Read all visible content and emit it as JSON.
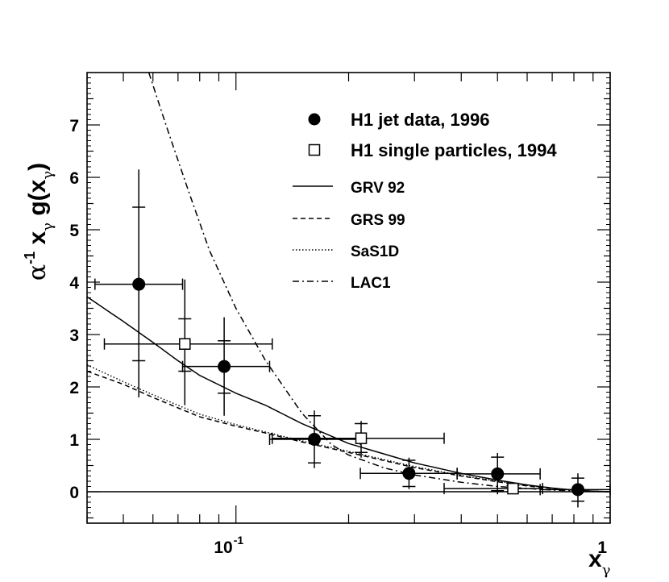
{
  "chart_data": {
    "type": "scatter",
    "title": "",
    "xscale": "log",
    "xlim": [
      0.04,
      1.0
    ],
    "ylim": [
      -0.6,
      8.0
    ],
    "xlabel": {
      "base": "x",
      "sub": "γ"
    },
    "ylabel": {
      "pre": "α",
      "pre_sup": "-1",
      "mid": "x",
      "mid_sub": "γ",
      "post": "g(x",
      "post_sub": "γ",
      "close": ")"
    },
    "y_ticks": [
      0,
      1,
      2,
      3,
      4,
      5,
      6,
      7
    ],
    "y_tick_labels": [
      "0",
      "1",
      "2",
      "3",
      "4",
      "5",
      "6",
      "7"
    ],
    "x_tick_labels": [
      {
        "value": 0.1,
        "base": "10",
        "exp": "-1"
      },
      {
        "value": 1.0,
        "base": "1",
        "exp": ""
      }
    ],
    "legend_position": "top-right",
    "legend": [
      {
        "label": "H1 jet data, 1996",
        "kind": "filled-circle"
      },
      {
        "label": "H1 single particles, 1994",
        "kind": "open-square"
      },
      {
        "label": "GRV 92",
        "kind": "solid"
      },
      {
        "label": "GRS 99",
        "kind": "dashed"
      },
      {
        "label": "SaS1D",
        "kind": "dotted"
      },
      {
        "label": "LAC1",
        "kind": "dashdot"
      }
    ],
    "series": [
      {
        "name": "H1 jet data, 1996",
        "marker": "filled-circle",
        "points": [
          {
            "x": 0.055,
            "y": 3.96,
            "xlo": 0.042,
            "xhi": 0.072,
            "ylo_stat": 2.5,
            "yhi_stat": 5.43,
            "ylo_tot": 1.8,
            "yhi_tot": 6.15
          },
          {
            "x": 0.093,
            "y": 2.39,
            "xlo": 0.072,
            "xhi": 0.123,
            "ylo_stat": 1.88,
            "yhi_stat": 2.88,
            "ylo_tot": 1.45,
            "yhi_tot": 3.33
          },
          {
            "x": 0.162,
            "y": 1.0,
            "xlo": 0.123,
            "xhi": 0.215,
            "ylo_stat": 0.55,
            "yhi_stat": 1.45,
            "ylo_tot": 0.45,
            "yhi_tot": 1.55
          },
          {
            "x": 0.29,
            "y": 0.35,
            "xlo": 0.215,
            "xhi": 0.39,
            "ylo_stat": 0.1,
            "yhi_stat": 0.6,
            "ylo_tot": 0.05,
            "yhi_tot": 0.65
          },
          {
            "x": 0.5,
            "y": 0.34,
            "xlo": 0.39,
            "xhi": 0.65,
            "ylo_stat": 0.02,
            "yhi_stat": 0.66,
            "ylo_tot": -0.05,
            "yhi_tot": 0.74
          },
          {
            "x": 0.82,
            "y": 0.04,
            "xlo": 0.65,
            "xhi": 1.0,
            "ylo_stat": -0.18,
            "yhi_stat": 0.26,
            "ylo_tot": -0.3,
            "yhi_tot": 0.35
          }
        ]
      },
      {
        "name": "H1 single particles, 1994",
        "marker": "open-square",
        "points": [
          {
            "x": 0.073,
            "y": 2.82,
            "xlo": 0.0445,
            "xhi": 0.125,
            "ylo_stat": 2.3,
            "yhi_stat": 3.3,
            "ylo_tot": 1.65,
            "yhi_tot": 4.05
          },
          {
            "x": 0.216,
            "y": 1.02,
            "xlo": 0.125,
            "xhi": 0.36,
            "ylo_stat": 0.75,
            "yhi_stat": 1.3,
            "ylo_tot": 0.65,
            "yhi_tot": 1.35
          },
          {
            "x": 0.55,
            "y": 0.06,
            "xlo": 0.36,
            "xhi": 0.66,
            "ylo_stat": 0.0,
            "yhi_stat": 0.12,
            "ylo_tot": -0.04,
            "yhi_tot": 0.16
          }
        ]
      },
      {
        "name": "GRV 92",
        "style": "solid",
        "x": [
          0.04,
          0.05,
          0.06,
          0.07,
          0.08,
          0.1,
          0.12,
          0.15,
          0.2,
          0.3,
          0.4,
          0.5,
          0.6,
          0.7,
          0.8,
          0.9,
          1.0
        ],
        "y": [
          3.72,
          3.25,
          2.85,
          2.5,
          2.22,
          1.88,
          1.65,
          1.3,
          0.92,
          0.55,
          0.35,
          0.22,
          0.13,
          0.07,
          0.03,
          0.01,
          0.0
        ]
      },
      {
        "name": "GRS 99",
        "style": "dashed",
        "x": [
          0.04,
          0.05,
          0.06,
          0.07,
          0.08,
          0.1,
          0.12,
          0.15,
          0.2,
          0.3,
          0.4,
          0.5,
          0.6,
          0.7,
          0.8,
          0.9,
          1.0
        ],
        "y": [
          2.3,
          2.05,
          1.8,
          1.6,
          1.43,
          1.25,
          1.12,
          0.95,
          0.75,
          0.46,
          0.3,
          0.19,
          0.11,
          0.06,
          0.03,
          0.01,
          0.0
        ]
      },
      {
        "name": "SaS1D",
        "style": "dotted",
        "x": [
          0.04,
          0.05,
          0.06,
          0.07,
          0.08,
          0.1,
          0.12,
          0.15,
          0.2,
          0.3,
          0.4,
          0.5,
          0.6,
          0.7,
          0.8,
          0.9,
          1.0
        ],
        "y": [
          2.42,
          2.1,
          1.85,
          1.65,
          1.48,
          1.28,
          1.14,
          0.97,
          0.77,
          0.48,
          0.31,
          0.2,
          0.12,
          0.07,
          0.03,
          0.01,
          0.0
        ]
      },
      {
        "name": "LAC1",
        "style": "dashdot",
        "x": [
          0.0585,
          0.065,
          0.075,
          0.085,
          0.1,
          0.12,
          0.15,
          0.18,
          0.2,
          0.25,
          0.3,
          0.4,
          0.5,
          0.7,
          1.0
        ],
        "y": [
          8.0,
          7.0,
          5.7,
          4.6,
          3.5,
          2.5,
          1.5,
          0.9,
          0.7,
          0.45,
          0.32,
          0.18,
          0.1,
          0.03,
          0.0
        ]
      }
    ]
  }
}
